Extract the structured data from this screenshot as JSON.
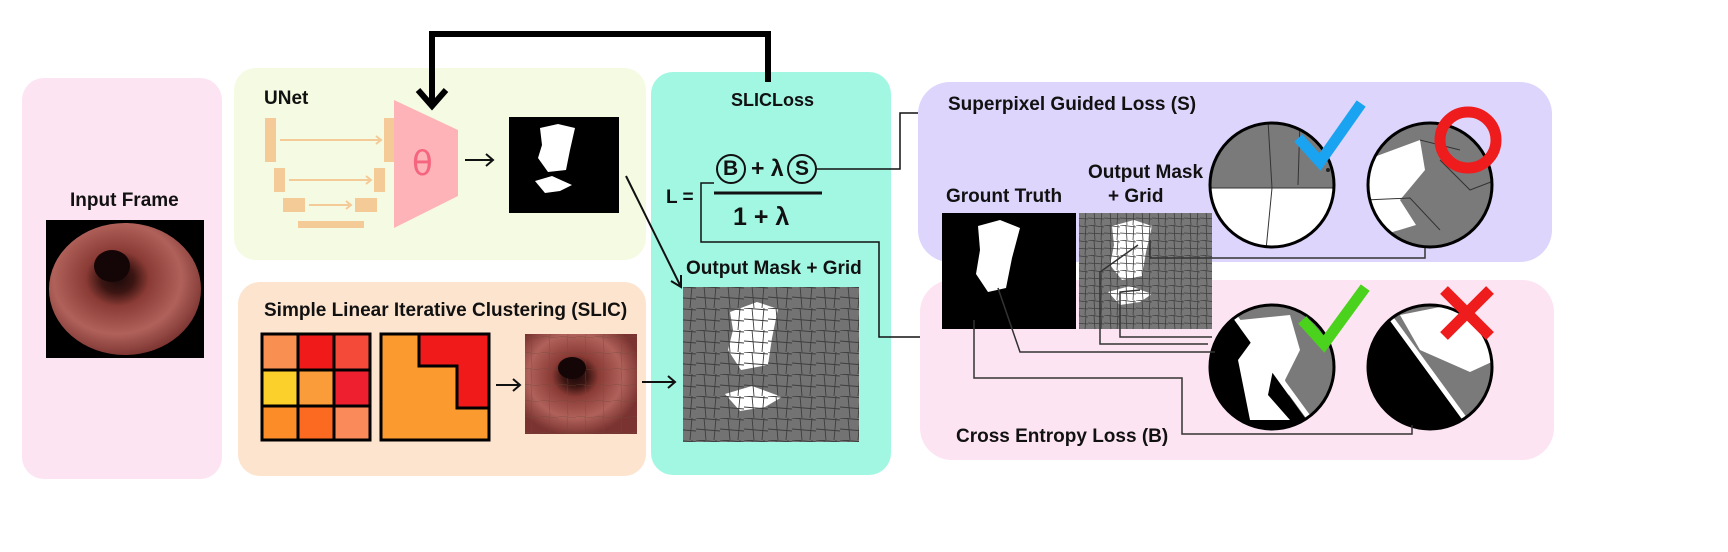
{
  "panels": {
    "input": {
      "title": "Input Frame"
    },
    "unet": {
      "title": "UNet",
      "theta": "θ"
    },
    "slic": {
      "title": "Simple Linear Iterative Clustering (SLIC)"
    },
    "slicloss": {
      "title": "SLICLoss",
      "output_title": "Output Mask + Grid"
    },
    "superpixel": {
      "title": "Superpixel Guided Loss (S)"
    },
    "crossentropy": {
      "title": "Cross Entropy Loss (B)"
    }
  },
  "formula": {
    "lhs": "L =",
    "b": "B",
    "plus_lambda": "+ λ",
    "s": "S",
    "denominator": "1 +  λ"
  },
  "right": {
    "ground_truth": "Grount Truth",
    "output_mask_line1": "Output Mask",
    "output_mask_line2": "+ Grid"
  },
  "colors": {
    "input_bg": "#fde4f2",
    "unet_bg": "#f4fbe2",
    "slic_bg": "#fde4cf",
    "slicloss_bg": "#a2f7e3",
    "superpixel_bg": "#ddd5fb",
    "crossentropy_bg": "#fde4f2",
    "check_blue": "#1aa3f0",
    "check_green": "#4ad21c",
    "cross_red": "#ee1c1c"
  }
}
